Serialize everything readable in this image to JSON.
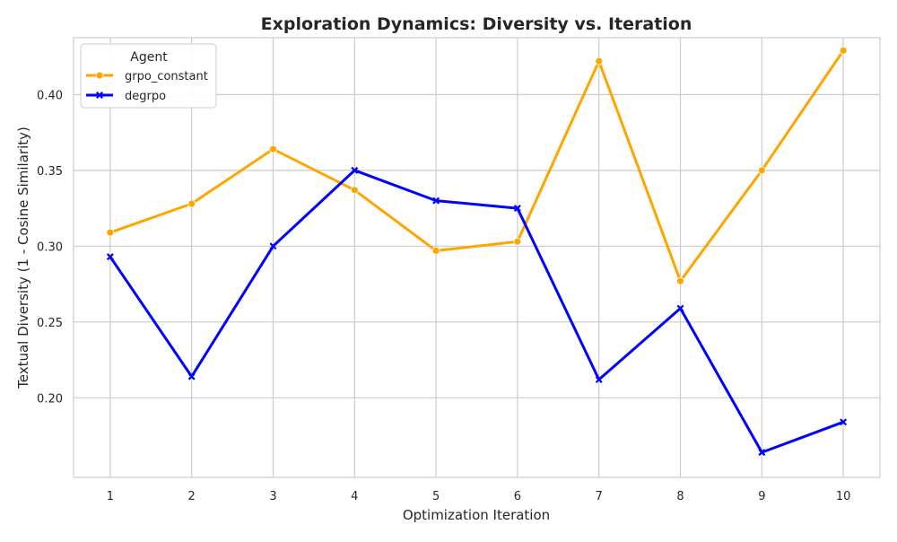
{
  "chart_data": {
    "type": "line",
    "title": "Exploration Dynamics: Diversity vs. Iteration",
    "xlabel": "Optimization Iteration",
    "ylabel": "Textual Diversity (1 - Cosine Similarity)",
    "x": [
      1,
      2,
      3,
      4,
      5,
      6,
      7,
      8,
      9,
      10
    ],
    "xlim": [
      0.55,
      10.45
    ],
    "ylim": [
      0.1475,
      0.4375
    ],
    "xticks": [
      1,
      2,
      3,
      4,
      5,
      6,
      7,
      8,
      9,
      10
    ],
    "yticks": [
      0.2,
      0.25,
      0.3,
      0.35,
      0.4
    ],
    "grid": true,
    "legend": {
      "title": "Agent",
      "placement": "top-left"
    },
    "series": [
      {
        "name": "grpo_constant",
        "color": "#FFA500",
        "marker": "circle",
        "values": [
          0.309,
          0.328,
          0.364,
          0.337,
          0.297,
          0.303,
          0.422,
          0.277,
          0.35,
          0.429
        ]
      },
      {
        "name": "degrpo",
        "color": "#0000FF",
        "marker": "x",
        "values": [
          0.293,
          0.214,
          0.3,
          0.35,
          0.33,
          0.325,
          0.212,
          0.259,
          0.164,
          0.184
        ]
      }
    ]
  }
}
